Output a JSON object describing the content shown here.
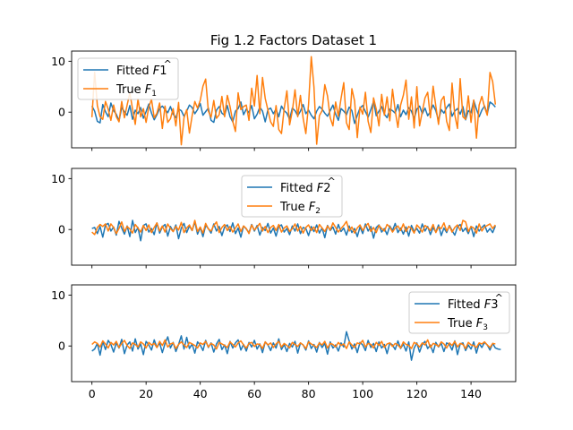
{
  "chart_data": {
    "type": "line",
    "title": "Fig 1.2 Factors Dataset 1",
    "colors": {
      "fitted": "#1f77b4",
      "true": "#ff7f0e"
    },
    "x_ticks": [
      0,
      20,
      40,
      60,
      80,
      100,
      120,
      140
    ],
    "y_ticks": [
      0,
      10
    ],
    "xlim": [
      -7.5,
      156.5
    ],
    "ylim": [
      -7,
      12
    ],
    "panels": [
      {
        "legend_position": "upper-left",
        "series": [
          {
            "name": "Fitted F1",
            "label_base": "Fitted ",
            "label_main": "F",
            "label_hat": "^",
            "label_sub": "",
            "label_tail": "1",
            "role": "fitted",
            "values": [
              1.2,
              0.2,
              -1.8,
              -2.1,
              1.5,
              0.1,
              -0.9,
              1.8,
              0.3,
              -0.4,
              -1.7,
              0.9,
              0.1,
              -0.6,
              1.3,
              -1.4,
              0.4,
              -0.3,
              0.9,
              -1.2,
              0.1,
              1.6,
              -0.2,
              -1.5,
              -0.5,
              0.7,
              1.2,
              0.5,
              -0.1,
              1.1,
              -0.4,
              -1.1,
              0.6,
              0.3,
              -0.8,
              0.2,
              1.4,
              0.9,
              -0.3,
              0.5,
              1.7,
              -0.6,
              0.1,
              0.8,
              -1.6,
              -2.0,
              0.4,
              1.1,
              -0.2,
              -0.6,
              1.3,
              -0.9,
              -1.9,
              0.2,
              0.7,
              2.0,
              -0.5,
              0.6,
              -0.1,
              1.3,
              -1.3,
              -0.4,
              1.0,
              0.2,
              -1.9,
              0.5,
              0.8,
              -0.3,
              0.6,
              -0.9,
              1.2,
              0.3,
              -0.2,
              -1.4,
              0.8,
              0.3,
              -0.7,
              0.2,
              1.5,
              -0.3,
              0.4,
              -0.6,
              -1.3,
              0.2,
              1.1,
              0.6,
              -0.2,
              -0.8,
              0.3,
              1.4,
              -0.4,
              -1.6,
              0.7,
              0.2,
              -0.5,
              1.0,
              0.3,
              -2.2,
              -0.6,
              0.8,
              1.3,
              0.1,
              -1.0,
              0.5,
              2.1,
              -0.7,
              0.2,
              1.1,
              -0.4,
              -1.1,
              0.6,
              0.3,
              -0.2,
              1.5,
              -0.9,
              0.4,
              -0.5,
              0.9,
              0.2,
              -1.3,
              0.6,
              1.2,
              -0.3,
              0.8,
              -0.7,
              0.1,
              1.4,
              0.3,
              -1.6,
              0.5,
              -0.2,
              0.9,
              1.6,
              -0.8,
              0.2,
              0.7,
              -0.4,
              1.1,
              -1.5,
              0.3,
              -0.1,
              2.3,
              0.6,
              -0.9,
              0.4,
              1.2,
              -0.3,
              2.0,
              1.6,
              1.0
            ]
          },
          {
            "name": "True F1",
            "label_base": "True ",
            "label_main": "F",
            "label_hat": "",
            "label_sub": "1",
            "label_tail": "",
            "role": "true",
            "values": [
              -1.0,
              7.8,
              1.3,
              -0.9,
              -1.4,
              2.1,
              0.6,
              -1.6,
              1.4,
              -0.9,
              -1.9,
              2.1,
              -1.1,
              1.4,
              3.8,
              0.6,
              -2.4,
              2.6,
              -0.9,
              0.7,
              -2.0,
              1.0,
              2.5,
              -1.1,
              -0.2,
              1.8,
              -3.2,
              1.2,
              -2.0,
              -1.3,
              0.7,
              -2.7,
              1.9,
              -6.4,
              -1.1,
              0.5,
              -4.1,
              -0.7,
              2.1,
              0.8,
              2.3,
              5.1,
              6.5,
              0.2,
              -1.0,
              2.3,
              -1.2,
              -0.5,
              3.1,
              -0.9,
              3.3,
              1.1,
              -1.8,
              -3.8,
              3.8,
              0.5,
              1.1,
              1.4,
              -1.6,
              4.7,
              1.2,
              7.2,
              -0.3,
              6.8,
              2.7,
              0.4,
              -1.9,
              -2.8,
              1.3,
              -3.4,
              -4.2,
              0.7,
              4.2,
              -2.5,
              0.2,
              4.4,
              -0.9,
              3.3,
              -1.2,
              -4.2,
              1.5,
              10.9,
              4.9,
              -6.3,
              -0.7,
              0.3,
              5.4,
              3.2,
              -1.1,
              -2.7,
              2.0,
              -0.8,
              2.7,
              5.8,
              -2.1,
              -3.4,
              4.6,
              2.2,
              -5.0,
              1.0,
              -0.4,
              3.9,
              -1.8,
              -4.0,
              2.8,
              0.6,
              -2.7,
              3.5,
              -0.6,
              3.0,
              -1.7,
              4.5,
              0.3,
              -3.0,
              1.4,
              3.3,
              6.3,
              -1.4,
              3.0,
              -3.1,
              5.0,
              -2.7,
              0.1,
              2.8,
              3.9,
              -1.1,
              5.1,
              1.2,
              -2.4,
              2.3,
              3.1,
              -1.8,
              -3.6,
              5.7,
              -0.5,
              -3.2,
              6.6,
              -0.9,
              -1.4,
              3.2,
              -2.0,
              2.4,
              -5.1,
              1.4,
              3.1,
              1.0,
              -0.6,
              7.8,
              6.0,
              1.5
            ]
          }
        ]
      },
      {
        "legend_position": "upper-center",
        "series": [
          {
            "name": "Fitted F2",
            "label_base": "Fitted ",
            "label_main": "F",
            "label_hat": "^",
            "label_sub": "",
            "label_tail": "2",
            "role": "fitted",
            "values": [
              0.2,
              0.4,
              -0.8,
              0.6,
              -1.5,
              0.9,
              1.2,
              -0.3,
              0.5,
              -1.1,
              1.6,
              0.3,
              -0.9,
              0.7,
              -1.4,
              1.8,
              -0.6,
              0.4,
              -2.2,
              0.8,
              1.1,
              -0.5,
              0.2,
              -1.0,
              1.3,
              -0.7,
              0.5,
              1.0,
              -1.3,
              0.6,
              -0.4,
              0.9,
              -1.8,
              0.3,
              1.2,
              -0.6,
              0.7,
              -0.2,
              1.5,
              -0.9,
              0.4,
              -1.4,
              0.8,
              0.2,
              -0.7,
              1.1,
              -0.3,
              0.6,
              -1.2,
              0.5,
              0.9,
              -0.4,
              1.3,
              -0.8,
              0.3,
              -1.5,
              0.7,
              0.1,
              -0.6,
              1.0,
              -0.3,
              0.8,
              -1.1,
              0.4,
              -0.2,
              1.2,
              -0.7,
              0.3,
              -1.3,
              0.6,
              0.9,
              -0.5,
              0.2,
              -1.0,
              0.7,
              -0.3,
              1.1,
              -0.8,
              0.4,
              0.2,
              -1.2,
              0.6,
              -0.4,
              0.9,
              -0.7,
              0.3,
              -1.6,
              0.8,
              -0.2,
              0.5,
              -0.9,
              1.0,
              -0.4,
              0.3,
              -1.1,
              0.7,
              -0.6,
              0.2,
              -1.4,
              0.5,
              -0.8,
              1.1,
              -0.3,
              0.6,
              -1.7,
              0.4,
              0.9,
              -0.5,
              0.2,
              -1.0,
              0.7,
              -0.2,
              1.2,
              -0.6,
              0.3,
              -0.9,
              0.5,
              -1.3,
              0.8,
              -0.4,
              0.2,
              -0.7,
              1.1,
              -0.3,
              0.6,
              -1.0,
              0.4,
              -0.5,
              0.9,
              -1.2,
              0.3,
              -0.6,
              0.8,
              -0.2,
              -1.1,
              0.5,
              1.0,
              -0.4,
              0.3,
              -0.8,
              0.6,
              -1.4,
              0.7,
              -0.3,
              0.4,
              0.9,
              -0.5,
              0.2,
              -0.6,
              0.7
            ]
          },
          {
            "name": "True F2",
            "label_base": "True ",
            "label_main": "F",
            "label_hat": "",
            "label_sub": "2",
            "label_tail": "",
            "role": "true",
            "values": [
              -0.5,
              -1.0,
              0.4,
              1.0,
              0.6,
              1.1,
              -0.3,
              1.1,
              0.4,
              -0.8,
              0.2,
              1.5,
              -0.4,
              0.6,
              0.1,
              -0.7,
              1.0,
              0.3,
              -0.5,
              0.8,
              -0.2,
              0.9,
              -0.6,
              0.4,
              1.3,
              -0.3,
              0.7,
              -0.5,
              1.1,
              0.2,
              -0.4,
              0.6,
              -0.1,
              1.4,
              -0.6,
              0.3,
              0.9,
              -0.2,
              1.8,
              -0.4,
              0.5,
              -0.7,
              1.2,
              0.1,
              -0.3,
              0.8,
              1.5,
              -0.6,
              0.4,
              1.0,
              -0.2,
              0.6,
              -0.5,
              0.3,
              1.1,
              -0.4,
              0.7,
              0.2,
              -0.8,
              0.9,
              -0.1,
              0.5,
              1.2,
              -0.3,
              0.6,
              -0.6,
              0.4,
              0.8,
              -0.2,
              1.0,
              -0.5,
              0.3,
              0.7,
              -0.4,
              0.2,
              1.1,
              -0.3,
              0.6,
              -0.7,
              0.4,
              0.9,
              -0.2,
              0.5,
              -0.6,
              1.0,
              0.3,
              -0.4,
              0.7,
              -0.1,
              1.3,
              0.4,
              -0.5,
              0.2,
              0.8,
              1.6,
              -0.3,
              0.5,
              -0.7,
              0.3,
              0.9,
              -0.2,
              0.6,
              1.2,
              -0.4,
              0.4,
              -0.6,
              0.8,
              0.2,
              -0.3,
              1.0,
              0.5,
              -0.5,
              0.3,
              0.7,
              -0.2,
              1.1,
              -0.4,
              0.6,
              0.2,
              -0.7,
              0.9,
              0.3,
              -0.5,
              0.8,
              0.4,
              -0.2,
              1.0,
              -0.6,
              0.5,
              0.2,
              1.3,
              -0.3,
              0.7,
              -0.5,
              0.4,
              0.9,
              -0.2,
              1.8,
              1.5,
              -0.4,
              0.6,
              0.3,
              -0.7,
              1.1,
              -0.3,
              0.5,
              0.8,
              1.1,
              0.2,
              0.9
            ]
          }
        ]
      },
      {
        "legend_position": "upper-right",
        "series": [
          {
            "name": "Fitted F3",
            "label_base": "Fitted ",
            "label_main": "F",
            "label_hat": "^",
            "label_sub": "",
            "label_tail": "3",
            "role": "fitted",
            "values": [
              -1.0,
              -0.6,
              0.5,
              -1.8,
              0.9,
              -0.7,
              1.1,
              0.3,
              -1.2,
              0.6,
              -0.4,
              1.3,
              -1.5,
              0.2,
              0.8,
              -1.0,
              1.4,
              -0.6,
              0.4,
              -1.7,
              0.9,
              0.2,
              -0.8,
              1.2,
              -0.3,
              0.6,
              -1.3,
              0.5,
              1.8,
              -0.4,
              0.7,
              -1.1,
              0.3,
              2.0,
              -0.6,
              1.7,
              -0.5,
              0.4,
              -1.4,
              0.8,
              0.2,
              -0.9,
              1.1,
              -0.3,
              0.6,
              -1.2,
              0.4,
              1.3,
              -0.7,
              0.2,
              -1.5,
              0.9,
              -0.4,
              0.6,
              1.2,
              -0.8,
              0.3,
              -1.0,
              0.7,
              -0.2,
              1.1,
              -0.6,
              0.4,
              -1.3,
              0.8,
              0.2,
              -0.9,
              0.6,
              -0.4,
              1.4,
              -0.7,
              0.3,
              -1.1,
              0.5,
              -0.2,
              0.9,
              -1.4,
              0.6,
              0.2,
              -0.8,
              1.0,
              -0.5,
              0.3,
              -1.2,
              0.7,
              -0.3,
              0.5,
              -1.6,
              0.8,
              -0.4,
              0.2,
              -1.0,
              0.6,
              -0.2,
              2.8,
              1.0,
              -0.6,
              0.4,
              -1.3,
              0.7,
              0.2,
              -0.9,
              1.1,
              -0.3,
              0.5,
              -1.1,
              0.8,
              -0.4,
              0.3,
              -1.5,
              0.6,
              0.2,
              -0.7,
              1.0,
              -0.5,
              0.4,
              -1.0,
              0.8,
              -2.8,
              -0.4,
              0.6,
              -1.2,
              0.3,
              0.9,
              -0.5,
              0.2,
              -1.3,
              0.7,
              -0.2,
              0.5,
              -1.1,
              0.6,
              0.3,
              -0.8,
              1.0,
              -1.7,
              0.4,
              0.6,
              -0.9,
              0.2,
              -0.6,
              0.8,
              -1.4,
              0.5,
              -0.3,
              0.7,
              0.2,
              -0.8,
              0.5,
              -0.4,
              -0.6,
              -0.7
            ]
          },
          {
            "name": "True F3",
            "label_base": "True ",
            "label_main": "F",
            "label_hat": "",
            "label_sub": "3",
            "label_tail": "",
            "role": "true",
            "values": [
              0.3,
              0.8,
              0.5,
              -0.2,
              1.0,
              0.4,
              -0.4,
              0.7,
              0.2,
              0.9,
              -0.3,
              0.5,
              1.1,
              0.1,
              -0.5,
              0.6,
              0.3,
              -0.2,
              0.8,
              0.4,
              -0.4,
              0.7,
              0.2,
              0.5,
              -0.3,
              0.9,
              0.1,
              1.2,
              -0.2,
              0.4,
              0.6,
              -0.5,
              0.3,
              0.8,
              0.2,
              -0.3,
              0.7,
              0.4,
              0.1,
              -0.4,
              0.6,
              0.3,
              0.9,
              -0.2,
              0.5,
              0.2,
              -0.6,
              0.7,
              0.4,
              0.1,
              -0.3,
              0.8,
              0.3,
              -0.2,
              0.6,
              1.0,
              0.2,
              -0.4,
              0.5,
              0.7,
              -0.1,
              0.4,
              0.3,
              -0.5,
              0.8,
              0.2,
              0.6,
              -0.3,
              0.4,
              0.9,
              -0.2,
              0.5,
              0.1,
              -0.4,
              0.7,
              0.3,
              -0.1,
              0.6,
              0.2,
              -0.5,
              0.8,
              0.4,
              0.1,
              -0.3,
              0.6,
              0.2,
              0.9,
              -0.4,
              0.5,
              0.3,
              -0.2,
              0.7,
              0.1,
              0.4,
              -0.5,
              0.8,
              0.2,
              -0.3,
              0.6,
              0.4,
              1.1,
              -0.2,
              0.5,
              0.3,
              -0.4,
              0.7,
              0.1,
              0.9,
              -0.3,
              0.4,
              0.6,
              -0.1,
              0.5,
              0.2,
              -0.4,
              0.8,
              0.3,
              0.1,
              -0.5,
              0.7,
              0.4,
              -0.2,
              0.6,
              0.2,
              1.2,
              -0.3,
              0.5,
              0.3,
              -0.1,
              0.8,
              0.4,
              -0.4,
              0.6,
              0.1,
              0.9,
              -0.2,
              0.5,
              0.3,
              -0.5,
              0.7,
              0.2,
              0.1,
              -0.3,
              0.6,
              0.4,
              0.8,
              0.2,
              -0.3,
              0.5,
              0.4
            ]
          }
        ]
      }
    ]
  }
}
